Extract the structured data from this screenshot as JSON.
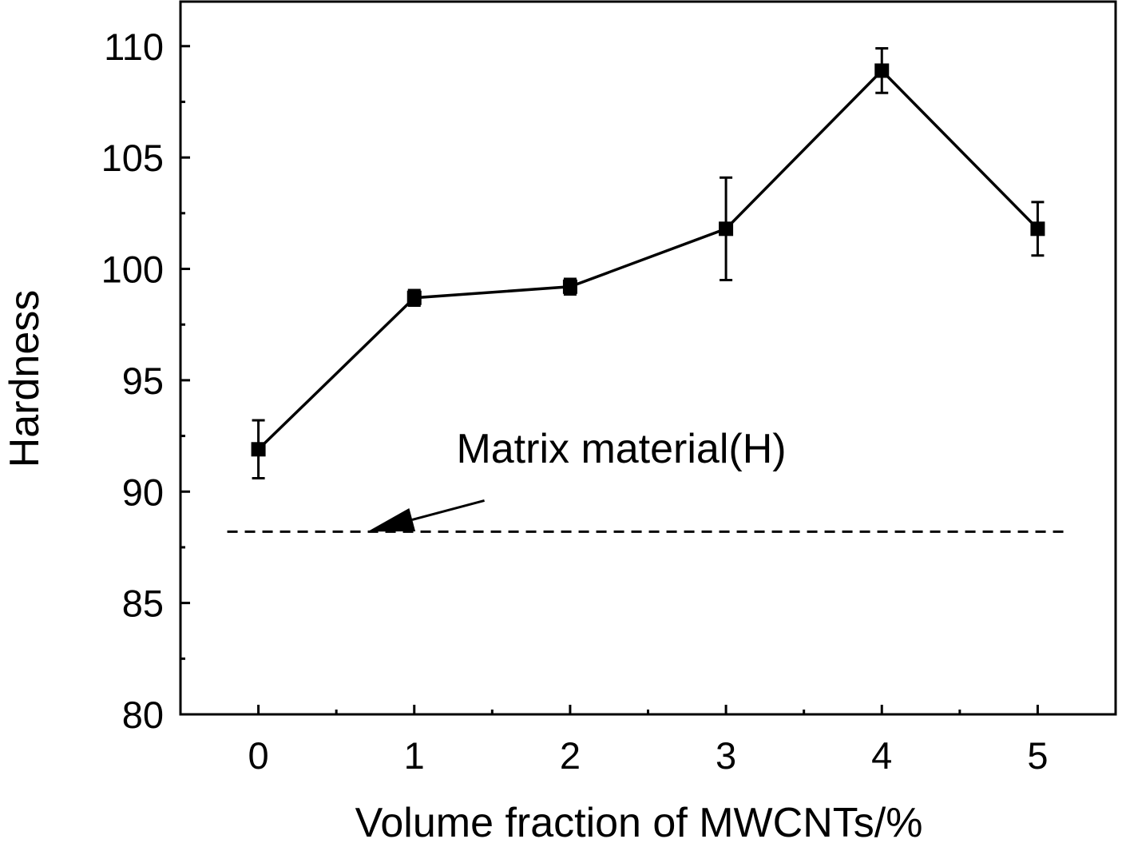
{
  "chart_data": {
    "type": "line",
    "title": "",
    "xlabel": "Volume fraction of MWCNTs/%",
    "ylabel": "Hardness",
    "xlim": [
      -0.5,
      5.5
    ],
    "ylim": [
      80,
      112
    ],
    "xticks": [
      0,
      1,
      2,
      3,
      4,
      5
    ],
    "yticks": [
      80,
      85,
      90,
      95,
      100,
      105,
      110
    ],
    "grid": false,
    "series": [
      {
        "name": "Hardness",
        "x": [
          0,
          1,
          2,
          3,
          4,
          5
        ],
        "values": [
          91.9,
          98.7,
          99.2,
          101.8,
          108.9,
          101.8
        ],
        "errors": [
          1.3,
          0.35,
          0.35,
          2.3,
          1.0,
          1.2
        ],
        "marker": "square",
        "color": "#000000"
      }
    ],
    "reference_line": {
      "name": "Matrix material(H)",
      "value": 88.2,
      "style": "dashed"
    },
    "annotations": [
      {
        "text": "Matrix material(H)",
        "points_to": "reference_line",
        "arrow_target": {
          "x": 0.7,
          "y": 88.2
        },
        "arrow_start": {
          "x": 1.45,
          "y": 89.6
        },
        "text_anchor": {
          "x": 1.27,
          "y": 91.3
        }
      }
    ]
  }
}
